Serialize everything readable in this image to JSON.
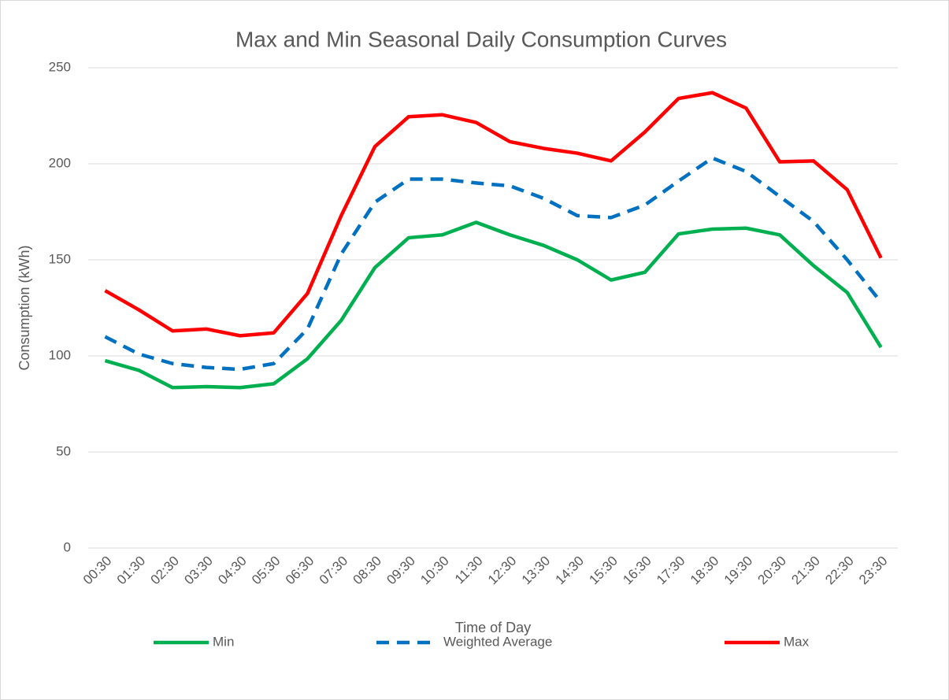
{
  "chart_data": {
    "type": "line",
    "title": "Max and Min Seasonal Daily Consumption Curves",
    "x_label": "Time of Day",
    "y_label": "Consumption (kWh)",
    "categories": [
      "00:30",
      "01:30",
      "02:30",
      "03:30",
      "04:30",
      "05:30",
      "06:30",
      "07:30",
      "08:30",
      "09:30",
      "10:30",
      "11:30",
      "12:30",
      "13:30",
      "14:30",
      "15:30",
      "16:30",
      "17:30",
      "18:30",
      "19:30",
      "20:30",
      "21:30",
      "22:30",
      "23:30"
    ],
    "series": [
      {
        "name": "Min",
        "color": "#00b050",
        "line_style": "solid",
        "values": [
          97.5,
          92.5,
          83.5,
          84,
          83.5,
          85.5,
          98.5,
          118.5,
          146,
          161.5,
          163,
          169.5,
          163,
          157.5,
          150,
          139.5,
          143.5,
          163.5,
          166,
          166.5,
          163,
          147,
          133,
          104.5
        ]
      },
      {
        "name": "Weighted Average",
        "color": "#0070c0",
        "line_style": "dashed",
        "values": [
          110,
          101,
          96,
          94,
          93,
          96,
          114,
          153,
          180,
          192,
          192,
          190,
          188.5,
          182,
          173,
          172,
          178.5,
          191,
          203,
          196,
          183,
          170,
          150,
          128
        ]
      },
      {
        "name": "Max",
        "color": "#ff0000",
        "line_style": "solid",
        "values": [
          134,
          124,
          113,
          114,
          110.5,
          112,
          132.5,
          173,
          209,
          224.5,
          225.5,
          221.5,
          211.5,
          208,
          205.5,
          201.5,
          216.5,
          234,
          237,
          229,
          201,
          201.5,
          186.5,
          151
        ]
      }
    ],
    "ylim": [
      0,
      250
    ],
    "yticks": [
      0,
      50,
      100,
      150,
      200,
      250
    ],
    "grid": true,
    "legend": "bottom"
  }
}
